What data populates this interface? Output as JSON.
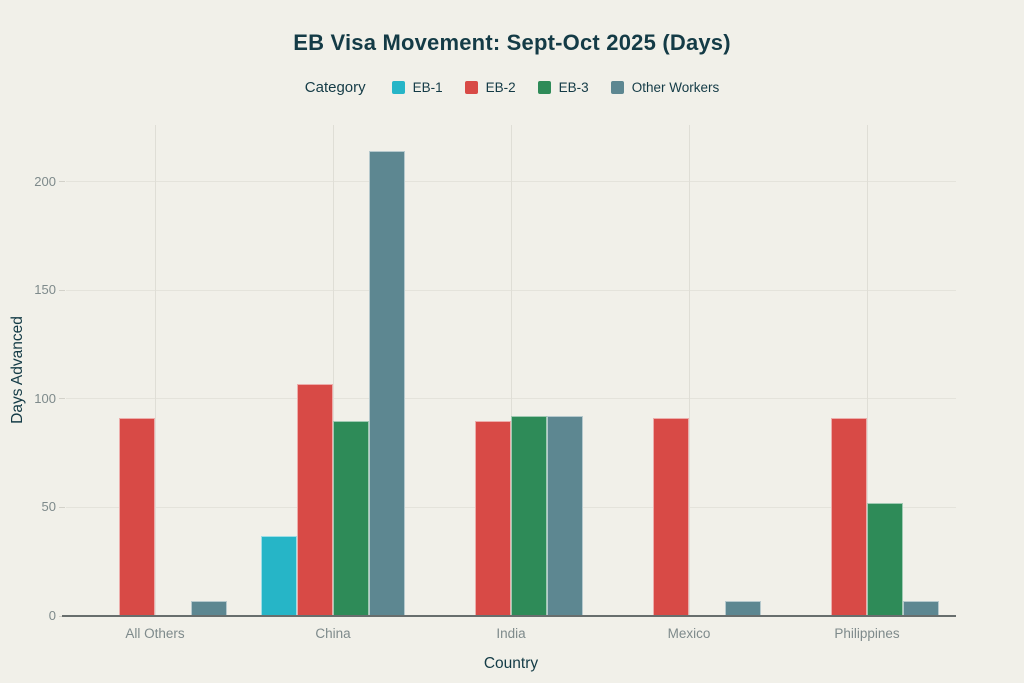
{
  "page": {
    "background": "#f1f0e9"
  },
  "chart_data": {
    "type": "bar",
    "title": "EB Visa Movement: Sept-Oct 2025 (Days)",
    "legend_title": "Category",
    "xlabel": "Country",
    "ylabel": "Days Advanced",
    "categories": [
      "All Others",
      "China",
      "India",
      "Mexico",
      "Philippines"
    ],
    "series": [
      {
        "name": "EB-1",
        "color": "#26b5c7",
        "values": [
          0,
          37,
          0,
          0,
          0
        ]
      },
      {
        "name": "EB-2",
        "color": "#d84a46",
        "values": [
          91,
          107,
          90,
          91,
          91
        ]
      },
      {
        "name": "EB-3",
        "color": "#2e8b58",
        "values": [
          0,
          90,
          92,
          0,
          52
        ]
      },
      {
        "name": "Other Workers",
        "color": "#5d8791",
        "values": [
          7,
          214,
          92,
          7,
          7
        ]
      }
    ],
    "yticks": [
      0,
      50,
      100,
      150,
      200
    ],
    "ylim": [
      0,
      226
    ],
    "grid": true,
    "legend_position": "top-center",
    "colors": {
      "background": "#f1f0e9",
      "text_dark": "#143b46",
      "tick_label": "#7e8a8b",
      "gridline_h": "#e4e3db",
      "gridline_v": "#dfded6",
      "axis_line": "#686e6d"
    }
  }
}
